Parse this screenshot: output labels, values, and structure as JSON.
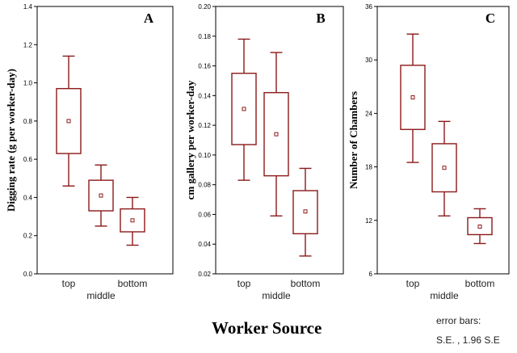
{
  "title": "Worker Source",
  "legend": {
    "line1": "error bars:",
    "line2": "S.E. , 1.96 S.E"
  },
  "colors": {
    "box": "#8c1a1a",
    "axis": "#000000"
  },
  "chart_data": [
    {
      "type": "box",
      "panel_label": "A",
      "ylabel": "Digging rate (g per worker-day)",
      "ylim": [
        0,
        1.4
      ],
      "yticks": [
        "0.0",
        "0.2",
        "0.4",
        "0.6",
        "0.8",
        "1.0",
        "1.2",
        "1.4"
      ],
      "categories": [
        "top",
        "middle",
        "bottom"
      ],
      "boxes": [
        {
          "mean": 0.8,
          "se_low": 0.63,
          "se_high": 0.97,
          "ci_low": 0.46,
          "ci_high": 1.14
        },
        {
          "mean": 0.41,
          "se_low": 0.33,
          "se_high": 0.49,
          "ci_low": 0.25,
          "ci_high": 0.57
        },
        {
          "mean": 0.28,
          "se_low": 0.22,
          "se_high": 0.34,
          "ci_low": 0.15,
          "ci_high": 0.4
        }
      ]
    },
    {
      "type": "box",
      "panel_label": "B",
      "ylabel": "cm gallery per worker-day",
      "ylim": [
        0.02,
        0.2
      ],
      "yticks": [
        "0.02",
        "0.04",
        "0.06",
        "0.08",
        "0.10",
        "0.12",
        "0.14",
        "0.16",
        "0.18",
        "0.20"
      ],
      "categories": [
        "top",
        "middle",
        "bottom"
      ],
      "boxes": [
        {
          "mean": 0.131,
          "se_low": 0.107,
          "se_high": 0.155,
          "ci_low": 0.083,
          "ci_high": 0.178
        },
        {
          "mean": 0.114,
          "se_low": 0.086,
          "se_high": 0.142,
          "ci_low": 0.059,
          "ci_high": 0.169
        },
        {
          "mean": 0.062,
          "se_low": 0.047,
          "se_high": 0.076,
          "ci_low": 0.032,
          "ci_high": 0.091
        }
      ]
    },
    {
      "type": "box",
      "panel_label": "C",
      "ylabel": "Number of Chambers",
      "ylim": [
        6,
        36
      ],
      "yticks": [
        "6",
        "12",
        "18",
        "24",
        "30",
        "36"
      ],
      "categories": [
        "top",
        "middle",
        "bottom"
      ],
      "boxes": [
        {
          "mean": 25.8,
          "se_low": 22.2,
          "se_high": 29.4,
          "ci_low": 18.5,
          "ci_high": 32.9
        },
        {
          "mean": 17.9,
          "se_low": 15.2,
          "se_high": 20.6,
          "ci_low": 12.5,
          "ci_high": 23.1
        },
        {
          "mean": 11.3,
          "se_low": 10.4,
          "se_high": 12.3,
          "ci_low": 9.4,
          "ci_high": 13.3
        }
      ]
    }
  ]
}
